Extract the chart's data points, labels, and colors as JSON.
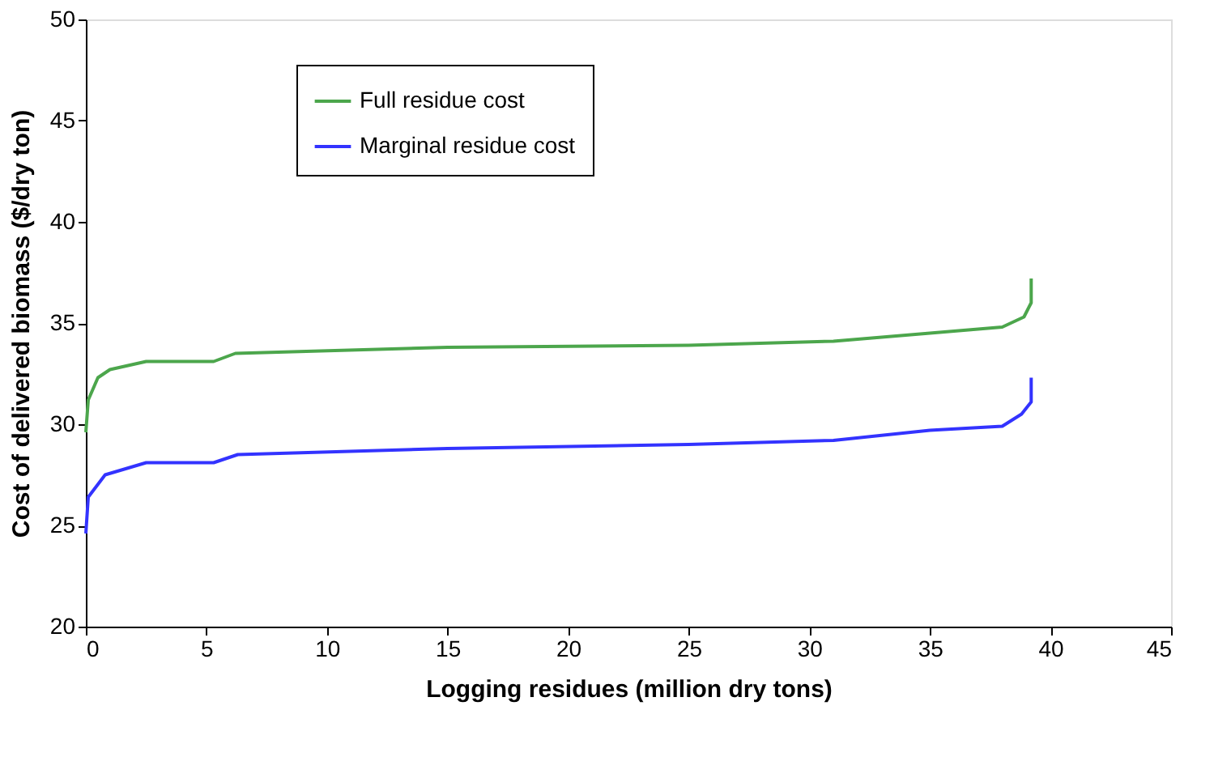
{
  "chart_data": {
    "type": "line",
    "xlabel": "Logging residues (million dry tons)",
    "ylabel": "Cost of delivered biomass ($/dry ton)",
    "xlim": [
      0,
      45
    ],
    "xticks": [
      0,
      5,
      10,
      15,
      20,
      25,
      30,
      35,
      40,
      45
    ],
    "ylim": [
      20,
      50
    ],
    "yticks": [
      20,
      25,
      30,
      35,
      40,
      45,
      50
    ],
    "grid": false,
    "legend": "top left",
    "marker": "none",
    "line_style": "solid",
    "series": [
      {
        "name": "Full residue cost",
        "color": "#4ca64c",
        "x": [
          0,
          0.1,
          0.5,
          1,
          2.5,
          5.3,
          6.2,
          15,
          25,
          31,
          35,
          38,
          38.9,
          39.2,
          39.2
        ],
        "values": [
          29.6,
          31.2,
          32.3,
          32.7,
          33.1,
          33.1,
          33.5,
          33.8,
          33.9,
          34.1,
          34.5,
          34.8,
          35.3,
          36,
          37.2
        ]
      },
      {
        "name": "Marginal residue cost",
        "color": "#3333ff",
        "x": [
          0,
          0.1,
          0.8,
          2.5,
          5.3,
          6.3,
          15,
          25,
          31,
          35,
          38,
          38.8,
          39.2,
          39.2
        ],
        "values": [
          24.6,
          26.4,
          27.5,
          28.1,
          28.1,
          28.5,
          28.8,
          29,
          29.2,
          29.7,
          29.9,
          30.5,
          31.1,
          32.3
        ]
      }
    ]
  }
}
